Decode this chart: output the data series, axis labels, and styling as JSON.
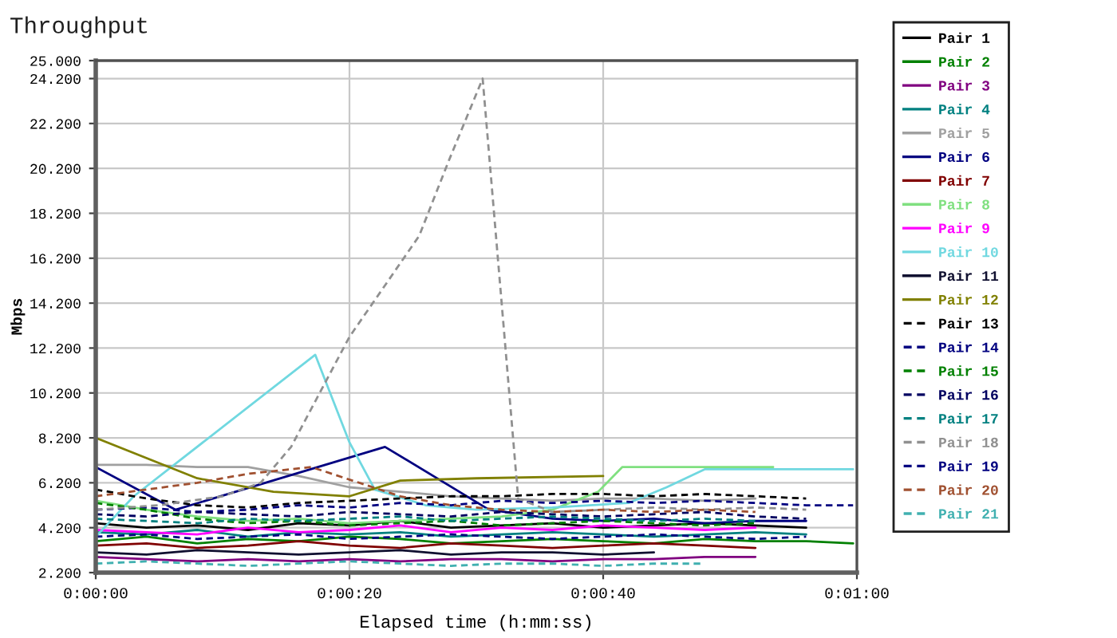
{
  "chart_data": {
    "type": "line",
    "title": "Throughput",
    "xlabel": "Elapsed time (h:mm:ss)",
    "ylabel": "Mbps",
    "xlim": [
      0,
      60
    ],
    "xticks": [
      {
        "value": 0,
        "label": "0:00:00"
      },
      {
        "value": 20,
        "label": "0:00:20"
      },
      {
        "value": 40,
        "label": "0:00:40"
      },
      {
        "value": 60,
        "label": "0:01:00"
      }
    ],
    "ylim": [
      2.2,
      25.0
    ],
    "yticks": [
      {
        "value": 2.2,
        "label": "2.200"
      },
      {
        "value": 4.2,
        "label": "4.200"
      },
      {
        "value": 6.2,
        "label": "6.200"
      },
      {
        "value": 8.2,
        "label": "8.200"
      },
      {
        "value": 10.2,
        "label": "10.200"
      },
      {
        "value": 12.2,
        "label": "12.200"
      },
      {
        "value": 14.2,
        "label": "14.200"
      },
      {
        "value": 16.2,
        "label": "16.200"
      },
      {
        "value": 18.2,
        "label": "18.200"
      },
      {
        "value": 20.2,
        "label": "20.200"
      },
      {
        "value": 22.2,
        "label": "22.200"
      },
      {
        "value": 24.2,
        "label": "24.200"
      },
      {
        "value": 25.0,
        "label": "25.000"
      }
    ],
    "grid": true,
    "legend": "right",
    "x": [
      0,
      4,
      8,
      12,
      16,
      20,
      24,
      28,
      32,
      36,
      40,
      44,
      48,
      52,
      56,
      59.7
    ],
    "series": [
      {
        "name": "Pair 1",
        "color": "#000000",
        "line_style": "solid",
        "values": [
          4.4,
          4.2,
          4.3,
          4.1,
          4.4,
          4.3,
          4.5,
          4.2,
          4.3,
          4.4,
          4.2,
          4.3,
          4.4,
          4.3,
          4.2,
          null
        ]
      },
      {
        "name": "Pair 2",
        "color": "#008000",
        "line_style": "solid",
        "values": [
          3.6,
          3.8,
          3.5,
          3.7,
          3.6,
          3.8,
          3.7,
          3.5,
          3.6,
          3.7,
          3.6,
          3.5,
          3.7,
          3.6,
          3.6,
          3.5
        ]
      },
      {
        "name": "Pair 3",
        "color": "#800080",
        "line_style": "solid",
        "values": [
          2.9,
          2.8,
          2.7,
          2.8,
          2.7,
          2.8,
          2.7,
          2.8,
          2.8,
          2.7,
          2.8,
          2.8,
          2.9,
          2.9,
          null,
          null
        ]
      },
      {
        "name": "Pair 4",
        "color": "#008080",
        "line_style": "solid",
        "values": [
          4.0,
          3.9,
          4.1,
          3.8,
          4.0,
          3.9,
          4.0,
          3.8,
          3.9,
          4.0,
          3.9,
          3.8,
          3.9,
          4.0,
          3.9,
          null
        ]
      },
      {
        "name": "Pair 5",
        "color": "#a0a0a0",
        "line_style": "solid",
        "values": [
          7.0,
          7.0,
          6.9,
          6.9,
          6.5,
          6.0,
          5.8,
          5.6,
          5.5,
          5.4,
          5.5,
          5.5,
          5.4,
          5.5,
          null,
          null
        ]
      },
      {
        "name": "Pair 6",
        "color": "#000080",
        "line_style": "solid",
        "x": [
          0,
          6.3,
          22.8,
          31,
          36,
          40,
          44,
          48,
          52,
          56
        ],
        "values": [
          6.9,
          5.0,
          7.8,
          5.0,
          4.6,
          4.5,
          4.6,
          4.4,
          4.5,
          4.5
        ]
      },
      {
        "name": "Pair 7",
        "color": "#800000",
        "line_style": "solid",
        "values": [
          3.4,
          3.5,
          3.3,
          3.4,
          3.6,
          3.4,
          3.3,
          3.5,
          3.4,
          3.3,
          3.4,
          3.5,
          3.4,
          3.3,
          null,
          null
        ]
      },
      {
        "name": "Pair 8",
        "color": "#80e080",
        "line_style": "solid",
        "x": [
          0,
          4,
          8,
          12,
          16,
          20,
          24,
          28,
          32,
          36,
          39.6,
          41.5,
          53.4
        ],
        "values": [
          5.4,
          5.0,
          4.7,
          4.5,
          4.6,
          4.4,
          4.5,
          4.6,
          4.7,
          5.0,
          5.8,
          6.9,
          6.9
        ]
      },
      {
        "name": "Pair 9",
        "color": "#ff00ff",
        "line_style": "solid",
        "values": [
          4.1,
          4.0,
          3.9,
          4.2,
          4.0,
          4.1,
          4.3,
          4.0,
          4.2,
          4.1,
          4.3,
          4.2,
          4.1,
          4.2,
          null,
          null
        ]
      },
      {
        "name": "Pair 10",
        "color": "#70d8e0",
        "line_style": "solid",
        "x": [
          0,
          3,
          17.3,
          20,
          22,
          26,
          30,
          36,
          42,
          45,
          48,
          59.7
        ],
        "values": [
          3.8,
          5.6,
          11.9,
          8.0,
          5.9,
          5.2,
          5.0,
          5.1,
          5.3,
          6.0,
          6.8,
          6.8
        ]
      },
      {
        "name": "Pair 11",
        "color": "#101030",
        "line_style": "solid",
        "values": [
          3.1,
          3.0,
          3.2,
          3.1,
          3.0,
          3.1,
          3.2,
          3.0,
          3.1,
          3.1,
          3.0,
          3.1,
          null,
          null,
          null,
          null
        ]
      },
      {
        "name": "Pair 12",
        "color": "#808000",
        "line_style": "solid",
        "x": [
          0,
          8,
          14,
          20,
          24,
          30,
          40
        ],
        "values": [
          8.2,
          6.4,
          5.8,
          5.6,
          6.3,
          6.4,
          6.5
        ]
      },
      {
        "name": "Pair 13",
        "color": "#000000",
        "line_style": "dashed",
        "values": [
          5.9,
          5.5,
          5.2,
          5.1,
          5.3,
          5.4,
          5.5,
          5.6,
          5.6,
          5.7,
          5.7,
          5.6,
          5.7,
          5.6,
          5.5,
          null
        ]
      },
      {
        "name": "Pair 14",
        "color": "#000080",
        "line_style": "dashed",
        "values": [
          5.0,
          5.1,
          4.9,
          5.0,
          5.2,
          5.1,
          5.3,
          5.2,
          5.4,
          5.3,
          5.4,
          5.3,
          5.4,
          5.3,
          5.2,
          5.2
        ]
      },
      {
        "name": "Pair 15",
        "color": "#008000",
        "line_style": "dashed",
        "values": [
          5.3,
          5.0,
          4.6,
          4.4,
          4.5,
          4.3,
          4.4,
          4.5,
          4.3,
          4.4,
          4.5,
          4.4,
          4.3,
          4.4,
          null,
          null
        ]
      },
      {
        "name": "Pair 16",
        "color": "#000060",
        "line_style": "dashed",
        "values": [
          4.8,
          4.7,
          4.9,
          4.8,
          4.7,
          4.9,
          4.8,
          4.7,
          4.9,
          4.8,
          4.7,
          4.8,
          4.9,
          4.7,
          4.6,
          null
        ]
      },
      {
        "name": "Pair 17",
        "color": "#008080",
        "line_style": "dashed",
        "values": [
          4.6,
          4.5,
          4.4,
          4.6,
          4.5,
          4.6,
          4.7,
          4.5,
          4.6,
          4.7,
          4.6,
          4.5,
          4.6,
          4.5,
          null,
          null
        ]
      },
      {
        "name": "Pair 18",
        "color": "#909090",
        "line_style": "dashed",
        "x": [
          0,
          5,
          10,
          13,
          15.4,
          20,
          25.5,
          27.8,
          30.5,
          33.3,
          36,
          40,
          44,
          48,
          52,
          56
        ],
        "values": [
          5.0,
          5.2,
          5.6,
          6.2,
          7.8,
          12.7,
          17.2,
          20.5,
          24.2,
          5.5,
          4.9,
          5.0,
          5.1,
          5.0,
          5.1,
          5.0
        ]
      },
      {
        "name": "Pair 19",
        "color": "#000080",
        "line_style": "dashed",
        "values": [
          3.8,
          3.9,
          3.7,
          3.8,
          3.9,
          3.7,
          3.8,
          3.9,
          3.8,
          3.7,
          3.8,
          3.9,
          3.8,
          3.7,
          3.8,
          null
        ]
      },
      {
        "name": "Pair 20",
        "color": "#a05030",
        "line_style": "dashed",
        "x": [
          0,
          4,
          8,
          12,
          17,
          24,
          28,
          32,
          36,
          40,
          44,
          48,
          52
        ],
        "values": [
          5.6,
          5.9,
          6.2,
          6.6,
          6.9,
          5.6,
          5.2,
          5.0,
          4.9,
          5.0,
          4.9,
          5.0,
          4.9
        ]
      },
      {
        "name": "Pair 21",
        "color": "#40b0b0",
        "line_style": "dashed",
        "values": [
          2.6,
          2.7,
          2.6,
          2.5,
          2.6,
          2.7,
          2.6,
          2.5,
          2.6,
          2.6,
          2.5,
          2.6,
          2.6,
          null,
          null,
          null
        ]
      }
    ]
  }
}
